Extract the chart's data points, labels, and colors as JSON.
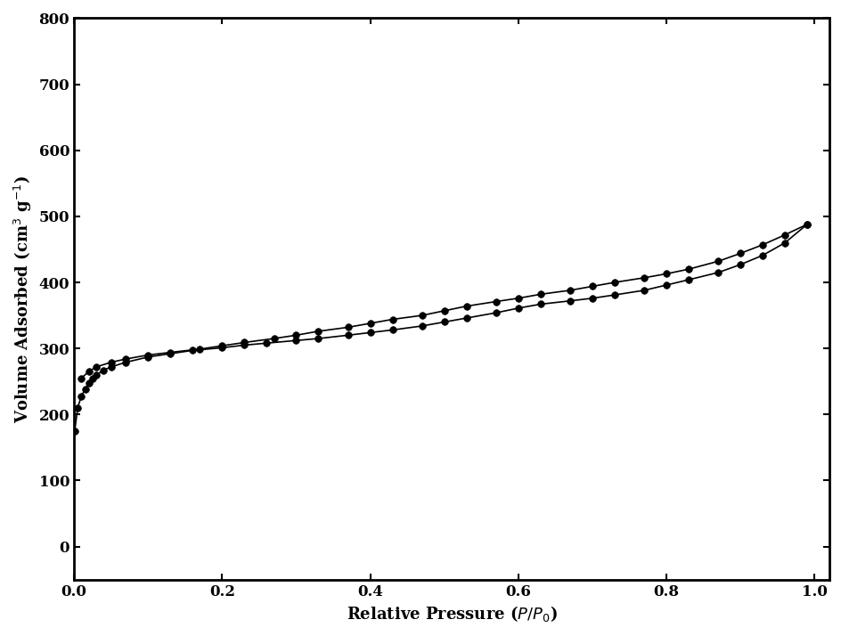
{
  "adsorption_x": [
    0.001,
    0.005,
    0.01,
    0.015,
    0.02,
    0.025,
    0.03,
    0.04,
    0.05,
    0.07,
    0.1,
    0.13,
    0.16,
    0.2,
    0.23,
    0.26,
    0.3,
    0.33,
    0.37,
    0.4,
    0.43,
    0.47,
    0.5,
    0.53,
    0.57,
    0.6,
    0.63,
    0.67,
    0.7,
    0.73,
    0.77,
    0.8,
    0.83,
    0.87,
    0.9,
    0.93,
    0.96,
    0.99
  ],
  "adsorption_y": [
    175,
    210,
    228,
    238,
    248,
    255,
    260,
    267,
    272,
    279,
    287,
    292,
    297,
    301,
    305,
    308,
    312,
    315,
    320,
    324,
    328,
    334,
    340,
    346,
    354,
    361,
    367,
    372,
    376,
    381,
    388,
    396,
    404,
    415,
    427,
    441,
    460,
    488
  ],
  "desorption_x": [
    0.99,
    0.96,
    0.93,
    0.9,
    0.87,
    0.83,
    0.8,
    0.77,
    0.73,
    0.7,
    0.67,
    0.63,
    0.6,
    0.57,
    0.53,
    0.5,
    0.47,
    0.43,
    0.4,
    0.37,
    0.33,
    0.3,
    0.27,
    0.23,
    0.2,
    0.17,
    0.13,
    0.1,
    0.07,
    0.05,
    0.03,
    0.02,
    0.01
  ],
  "desorption_y": [
    488,
    472,
    457,
    444,
    432,
    420,
    413,
    407,
    400,
    394,
    388,
    382,
    376,
    371,
    364,
    357,
    350,
    344,
    338,
    332,
    326,
    320,
    315,
    309,
    304,
    299,
    294,
    290,
    284,
    279,
    272,
    265,
    255
  ],
  "line_color": "#000000",
  "marker_color": "#000000",
  "marker_size": 5.5,
  "linewidth": 1.2,
  "xlabel": "Relative Pressure ($P/P_0$)",
  "ylabel": "Volume Adsorbed (cm$^3$ g$^{-1}$)",
  "xlim": [
    0.0,
    1.02
  ],
  "ylim": [
    -50,
    800
  ],
  "yticks": [
    0,
    100,
    200,
    300,
    400,
    500,
    600,
    700,
    800
  ],
  "xticks": [
    0.0,
    0.2,
    0.4,
    0.6,
    0.8,
    1.0
  ],
  "background_color": "#ffffff",
  "tick_direction": "in",
  "axis_linewidth": 2.0,
  "xlabel_fontsize": 13,
  "ylabel_fontsize": 13,
  "tick_fontsize": 12
}
